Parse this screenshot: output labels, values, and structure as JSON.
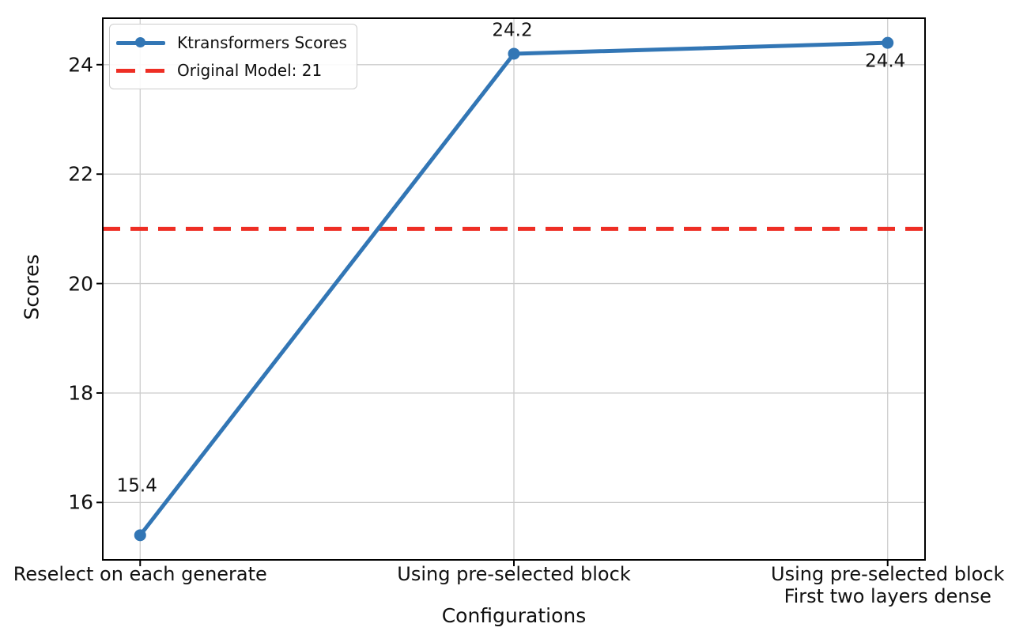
{
  "figure": {
    "background": "#ffffff"
  },
  "chart_data": {
    "type": "line",
    "title": "",
    "xlabel": "Configurations",
    "ylabel": "Scores",
    "categories": [
      "Reselect on each generate",
      "Using pre-selected block",
      "Using pre-selected block\nFirst two layers dense"
    ],
    "series": [
      {
        "name": "Ktransformers Scores",
        "values": [
          15.4,
          24.2,
          24.4
        ],
        "color": "#3276b5",
        "marker": "circle",
        "style": "solid"
      }
    ],
    "data_labels": [
      "15.4",
      "24.2",
      "24.4"
    ],
    "reference_line": {
      "label": "Original Model: 21",
      "value": 21,
      "color": "#ee2e24",
      "style": "dashed"
    },
    "yticks": [
      16,
      18,
      20,
      22,
      24
    ],
    "ylim": [
      14.95,
      24.85
    ],
    "grid": true,
    "grid_color": "#cccccc",
    "frame_color": "#000000",
    "legend_position": "upper-left",
    "legend_entries": [
      "Ktransformers Scores",
      "Original Model: 21"
    ]
  }
}
